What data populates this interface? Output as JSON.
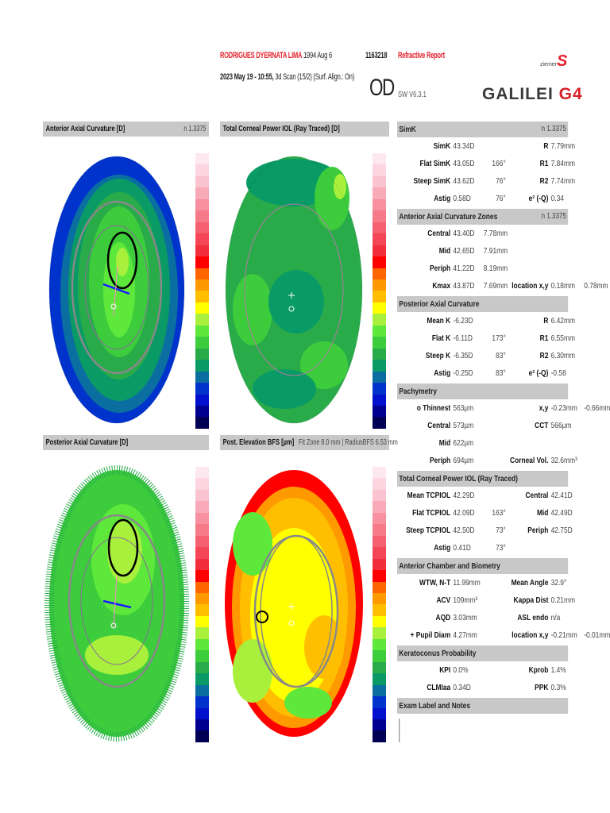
{
  "header": {
    "patient_name": "RODRIGUES DYERNATA LIMA",
    "birth_date": "1994 Aug 6",
    "patient_id": "1163218",
    "report_type": "Refractive Report",
    "exam_datetime": "2023 May 19 - 10:55,",
    "scan_info": "3d Scan (15/2) (Surf. Align.: On)",
    "eye": "OD",
    "software": "SW V6.3.1",
    "brand_small": "ziemer",
    "product_logo": "GALILEI G4"
  },
  "maps": [
    {
      "title": "Anterior Axial Curvature  [D]",
      "note": "n 1.3375"
    },
    {
      "title": "Total Corneal Power IOL (Ray Traced)  [D]",
      "note": ""
    },
    {
      "title": "Posterior Axial Curvature  [D]",
      "note": ""
    },
    {
      "title": "Post. Elevation BFS  [µm]",
      "note": "Fit Zone 8.0 mm | RadiusBFS 6.53 mm"
    }
  ],
  "color_scale": [
    "#fde8f0",
    "#fcd5e0",
    "#fbc3cf",
    "#f9aab8",
    "#f8909f",
    "#f77a88",
    "#f56070",
    "#f44656",
    "#f22e3c",
    "#ff0000",
    "#ff6600",
    "#ff9900",
    "#ffbf00",
    "#ffff00",
    "#a8f03c",
    "#5ee83c",
    "#3ccc3c",
    "#2aab4a",
    "#0a9a66",
    "#0a6fa0",
    "#0033cc",
    "#0010cc",
    "#000090",
    "#000055"
  ],
  "sections": [
    {
      "title": "SimK",
      "note": "n 1.3375",
      "rows": [
        [
          "SimK",
          "43.34D",
          "",
          "R",
          "7.79mm",
          ""
        ],
        [
          "Flat SimK",
          "43.05D",
          "166°",
          "R1",
          "7.84mm",
          ""
        ],
        [
          "Steep SimK",
          "43.62D",
          "76°",
          "R2",
          "7.74mm",
          ""
        ],
        [
          "Astig",
          "0.58D",
          "76°",
          "e² (-Q)",
          "0.34",
          ""
        ]
      ]
    },
    {
      "title": "Anterior Axial Curvature Zones",
      "note": "n 1.3375",
      "rows": [
        [
          "Central",
          "43.40D",
          "7.78mm",
          "",
          "",
          ""
        ],
        [
          "Mid",
          "42.65D",
          "7.91mm",
          "",
          "",
          ""
        ],
        [
          "Periph",
          "41.22D",
          "8.19mm",
          "",
          "",
          ""
        ],
        [
          "Kmax",
          "43.87D",
          "7.69mm",
          "location x,y",
          "0.18mm",
          "0.78mm"
        ]
      ]
    },
    {
      "title": "Posterior Axial Curvature",
      "note": "",
      "rows": [
        [
          "Mean K",
          "-6.23D",
          "",
          "R",
          "6.42mm",
          ""
        ],
        [
          "Flat K",
          "-6.11D",
          "173°",
          "R1",
          "6.55mm",
          ""
        ],
        [
          "Steep K",
          "-6.35D",
          "83°",
          "R2",
          "6.30mm",
          ""
        ],
        [
          "Astig",
          "-0.25D",
          "83°",
          "e² (-Q)",
          "-0.58",
          ""
        ]
      ]
    },
    {
      "title": "Pachymetry",
      "note": "",
      "rows": [
        [
          "o Thinnest",
          "563µm",
          "",
          "x,y",
          "-0.23mm",
          "-0.66mm"
        ],
        [
          "Central",
          "573µm",
          "",
          "CCT",
          "566µm",
          ""
        ],
        [
          "Mid",
          "622µm",
          "",
          "",
          "",
          ""
        ],
        [
          "Periph",
          "694µm",
          "",
          "Corneal Vol.",
          "32.6mm³",
          ""
        ]
      ]
    },
    {
      "title": "Total Corneal Power IOL (Ray Traced)",
      "note": "",
      "rows": [
        [
          "Mean TCPIOL",
          "42.29D",
          "",
          "Central",
          "42.41D",
          ""
        ],
        [
          "Flat TCPIOL",
          "42.09D",
          "163°",
          "Mid",
          "42.49D",
          ""
        ],
        [
          "Steep TCPIOL",
          "42.50D",
          "73°",
          "Periph",
          "42.75D",
          ""
        ],
        [
          "Astig",
          "0.41D",
          "73°",
          "",
          "",
          ""
        ]
      ]
    },
    {
      "title": "Anterior Chamber and Biometry",
      "note": "",
      "rows": [
        [
          "WTW, N-T",
          "11.99mm",
          "",
          "Mean Angle",
          "32.9°",
          ""
        ],
        [
          "ACV",
          "109mm³",
          "",
          "Kappa Dist",
          "0.21mm",
          ""
        ],
        [
          "AQD",
          "3.03mm",
          "",
          "ASL endo",
          "n/a",
          ""
        ],
        [
          "+ Pupil Diam",
          "4.27mm",
          "",
          "location x,y",
          "-0.21mm",
          "-0.01mm"
        ]
      ]
    },
    {
      "title": "Keratoconus Probability",
      "note": "",
      "rows": [
        [
          "KPI",
          "0.0%",
          "",
          "Kprob",
          "1.4%",
          ""
        ],
        [
          "CLMIaa",
          "0.34D",
          "",
          "PPK",
          "0.3%",
          ""
        ]
      ]
    },
    {
      "title": "Exam Label and Notes",
      "note": "",
      "rows": []
    }
  ]
}
